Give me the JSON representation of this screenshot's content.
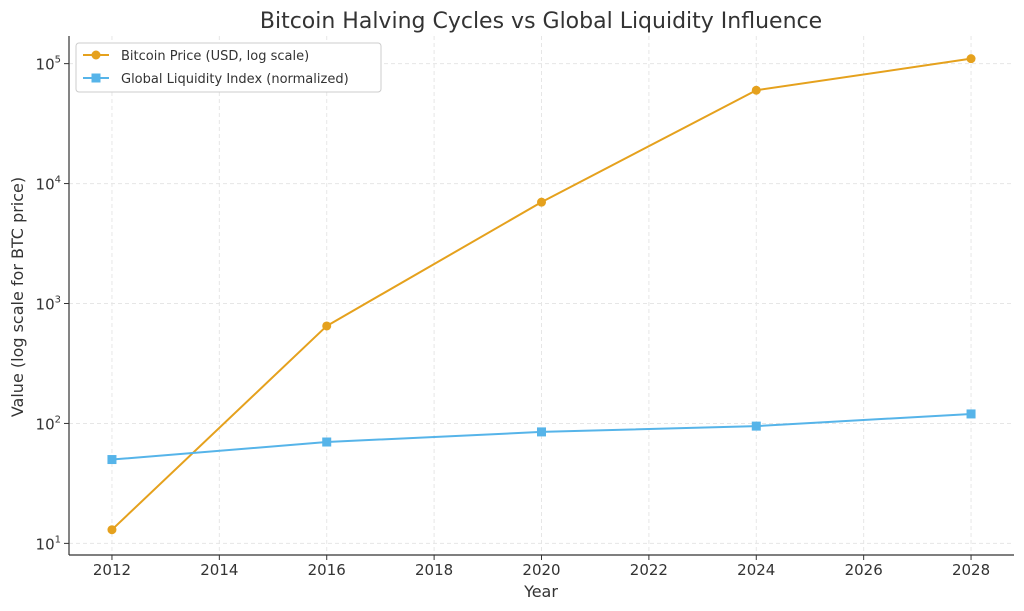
{
  "chart_data": {
    "type": "line",
    "title": "Bitcoin Halving Cycles vs Global Liquidity Influence",
    "xlabel": "Year",
    "ylabel": "Value (log scale for BTC price)",
    "yscale": "log",
    "xlim": [
      2011.2,
      2028.8
    ],
    "ylim": [
      8,
      170000
    ],
    "x_ticks": [
      2012,
      2014,
      2016,
      2018,
      2020,
      2022,
      2024,
      2026,
      2028
    ],
    "y_ticks": [
      {
        "value": 10,
        "base": "10",
        "exp": "1"
      },
      {
        "value": 100,
        "base": "10",
        "exp": "2"
      },
      {
        "value": 1000,
        "base": "10",
        "exp": "3"
      },
      {
        "value": 10000,
        "base": "10",
        "exp": "4"
      },
      {
        "value": 100000,
        "base": "10",
        "exp": "5"
      }
    ],
    "grid": true,
    "legend_position": "top-left",
    "series": [
      {
        "name": "Bitcoin Price (USD, log scale)",
        "color": "#E5A11D",
        "marker": "circle",
        "x": [
          2012,
          2016,
          2020,
          2024,
          2028
        ],
        "values": [
          13,
          650,
          7000,
          60000,
          110000
        ]
      },
      {
        "name": "Global Liquidity Index (normalized)",
        "color": "#56B4E9",
        "marker": "square",
        "x": [
          2012,
          2016,
          2020,
          2024,
          2028
        ],
        "values": [
          50,
          70,
          85,
          95,
          120
        ]
      }
    ]
  }
}
